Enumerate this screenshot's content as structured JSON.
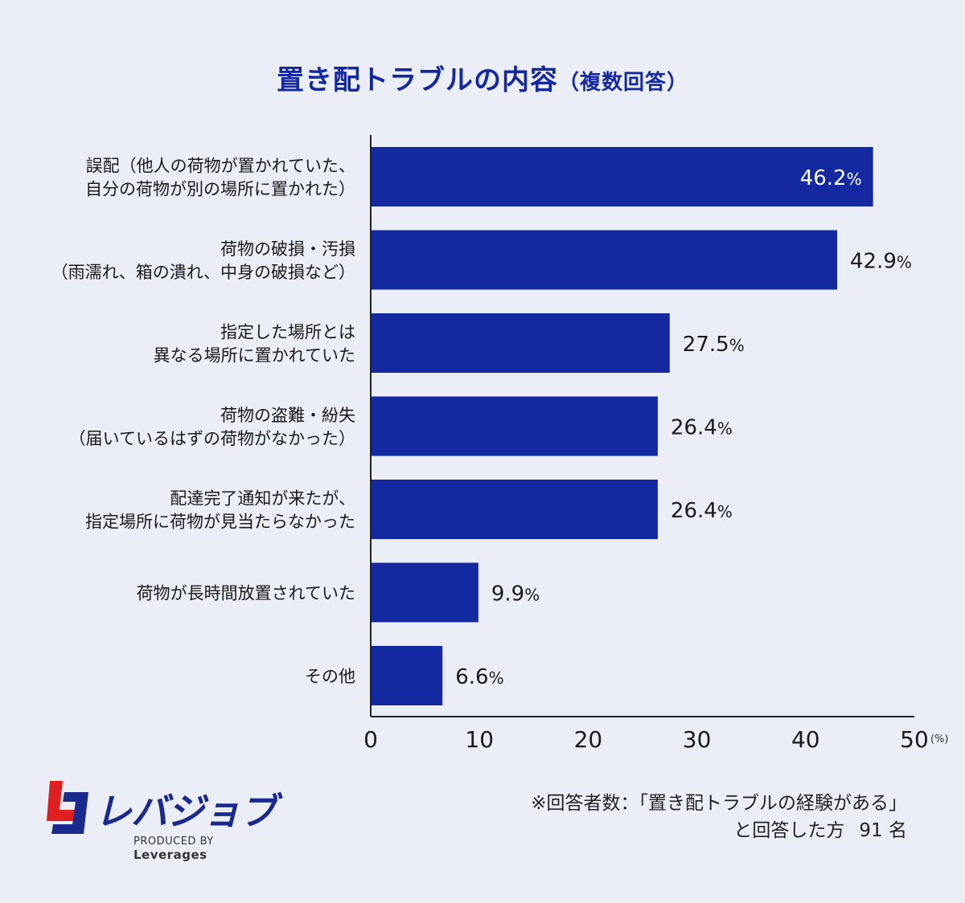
{
  "title": {
    "main": "置き配トラブルの内容",
    "sub": "（複数回答）"
  },
  "chart_data": {
    "type": "bar",
    "orientation": "horizontal",
    "categories": [
      [
        "誤配（他人の荷物が置かれていた、",
        "自分の荷物が別の場所に置かれた）"
      ],
      [
        "荷物の破損・汚損",
        "（雨濡れ、箱の潰れ、中身の破損など）"
      ],
      [
        "指定した場所とは",
        "異なる場所に置かれていた"
      ],
      [
        "荷物の盗難・紛失",
        "（届いているはずの荷物がなかった）"
      ],
      [
        "配達完了通知が来たが、",
        "指定場所に荷物が見当たらなかった"
      ],
      [
        "荷物が長時間放置されていた"
      ],
      [
        "その他"
      ]
    ],
    "values": [
      46.2,
      42.9,
      27.5,
      26.4,
      26.4,
      9.9,
      6.6
    ],
    "value_labels": [
      "46.2",
      "42.9",
      "27.5",
      "26.4",
      "26.4",
      "9.9",
      "6.6"
    ],
    "value_suffix": "%",
    "xlim": [
      0,
      50
    ],
    "xticks": [
      "0",
      "10",
      "20",
      "30",
      "40",
      "50"
    ],
    "xunit": "(%)",
    "grid": false,
    "bar_color": "#1428a0"
  },
  "footnote": {
    "line1": "※回答者数：「置き配トラブルの経験がある」",
    "line2": "と回答した方",
    "count": "91 名"
  },
  "logo": {
    "name": "レバジョブ",
    "produced_by": "PRODUCED BY",
    "company": "Leverages"
  },
  "colors": {
    "background": "#eceef7",
    "accent": "#1428a0",
    "logo_red": "#e02020"
  }
}
